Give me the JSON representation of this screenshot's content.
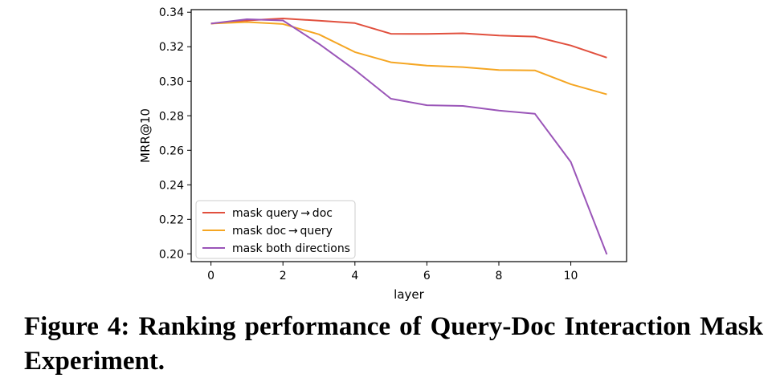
{
  "caption": "Figure 4: Ranking performance of Query-Doc Interaction Mask Experiment.",
  "chart_data": {
    "type": "line",
    "title": "",
    "xlabel": "layer",
    "ylabel": "MRR@10",
    "xlim": [
      -0.55,
      11.55
    ],
    "ylim": [
      0.1955,
      0.3415
    ],
    "xticks": [
      0,
      2,
      4,
      6,
      8,
      10
    ],
    "yticks": [
      0.2,
      0.22,
      0.24,
      0.26,
      0.28,
      0.3,
      0.32,
      0.34
    ],
    "xtick_labels": [
      "0",
      "2",
      "4",
      "6",
      "8",
      "10"
    ],
    "ytick_labels": [
      "0.20",
      "0.22",
      "0.24",
      "0.26",
      "0.28",
      "0.30",
      "0.32",
      "0.34"
    ],
    "x": [
      0,
      1,
      2,
      3,
      4,
      5,
      6,
      7,
      8,
      9,
      10,
      11
    ],
    "legend_position": "lower-left",
    "grid": false,
    "series": [
      {
        "name": "mask query → doc",
        "color": "#e1503e",
        "values": [
          0.3334,
          0.3352,
          0.3364,
          0.3351,
          0.3337,
          0.3275,
          0.3274,
          0.3278,
          0.3265,
          0.3259,
          0.3207,
          0.3137
        ]
      },
      {
        "name": "mask doc → query",
        "color": "#f5a623",
        "values": [
          0.3334,
          0.3343,
          0.3332,
          0.3272,
          0.3169,
          0.311,
          0.3091,
          0.3082,
          0.3065,
          0.3063,
          0.2983,
          0.2924
        ]
      },
      {
        "name": "mask both directions",
        "color": "#9a55b8",
        "values": [
          0.3334,
          0.3359,
          0.3352,
          0.3217,
          0.3066,
          0.2899,
          0.2861,
          0.2857,
          0.283,
          0.2812,
          0.2532,
          0.1997
        ]
      }
    ]
  }
}
